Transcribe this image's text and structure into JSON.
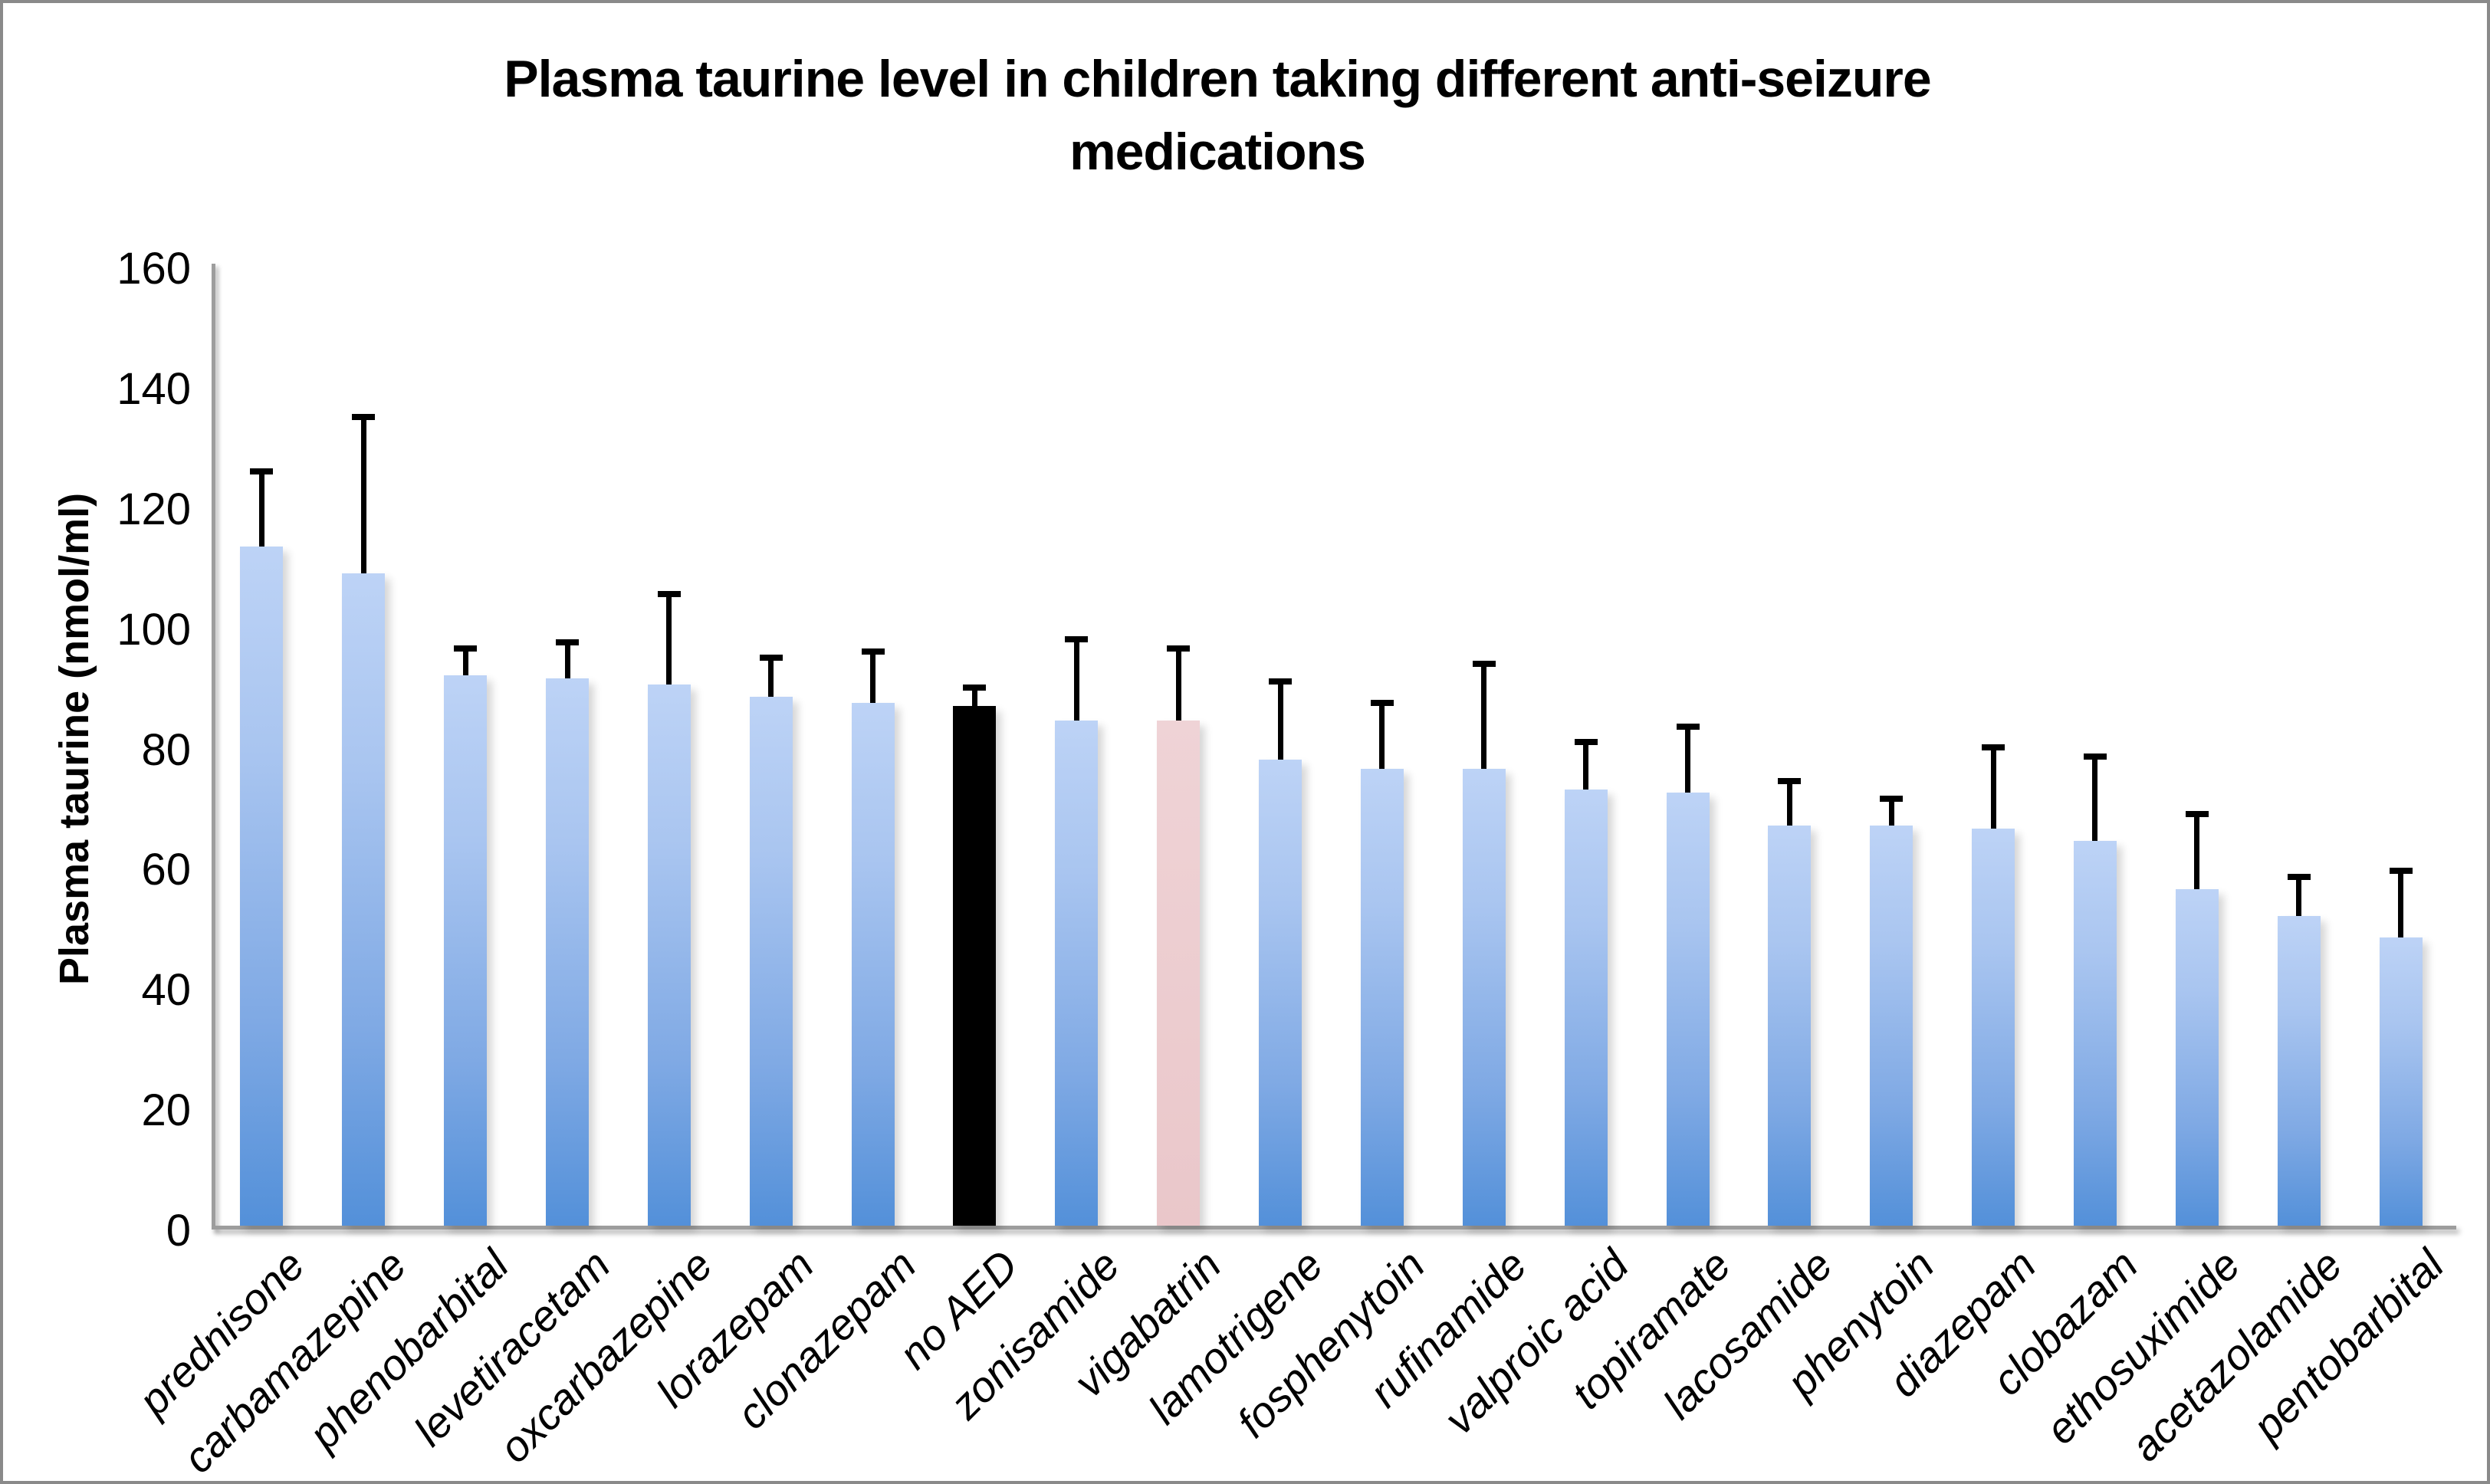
{
  "chart_data": {
    "type": "bar",
    "title": "Plasma taurine level in children taking different anti-seizure medications",
    "title_lines": [
      "Plasma taurine level in children taking different anti-seizure",
      "medications"
    ],
    "ylabel": "Plasma taurine (nmol/ml)",
    "xlabel": "",
    "ylim": [
      0,
      160
    ],
    "yticks": [
      0,
      20,
      40,
      60,
      80,
      100,
      120,
      140,
      160
    ],
    "grid": false,
    "legend_position": "none",
    "categories": [
      "prednisone",
      "carbamazepine",
      "phenobarbital",
      "levetiracetam",
      "oxcarbazepine",
      "lorazepam",
      "clonazepam",
      "no AED",
      "zonisamide",
      "vigabatrin",
      "lamotrigene",
      "fosphenytoin",
      "rufinamide",
      "valproic acid",
      "topiramate",
      "lacosamide",
      "phenytoin",
      "diazepam",
      "clobazam",
      "ethosuximide",
      "acetazolamide",
      "pentobarbital"
    ],
    "values": [
      113,
      108.5,
      91.5,
      91,
      90,
      88,
      87,
      86.5,
      84,
      84,
      77.5,
      76,
      76,
      72.5,
      72,
      66.5,
      66.5,
      66,
      64,
      56,
      51.5,
      48
    ],
    "errors_plus": [
      12.5,
      26,
      4.5,
      6,
      15,
      6.5,
      8.5,
      3,
      13.5,
      12,
      13,
      11,
      17.5,
      8,
      11,
      7.5,
      4.5,
      13.5,
      14,
      12.5,
      6.5,
      11
    ],
    "bar_colors": [
      "blue",
      "blue",
      "blue",
      "blue",
      "blue",
      "blue",
      "blue",
      "black",
      "blue",
      "pink",
      "blue",
      "blue",
      "blue",
      "blue",
      "blue",
      "blue",
      "blue",
      "blue",
      "blue",
      "blue",
      "blue",
      "blue"
    ]
  },
  "colors": {
    "blue_bar_top": "#bdd3f6",
    "blue_bar_bottom": "#5390d9",
    "black_bar": "#000000",
    "pink_bar": "#ecc9cc",
    "axis_line": "#9d9d9d",
    "outer_border": "#8a8a8a",
    "text": "#000000",
    "background": "#ffffff"
  }
}
